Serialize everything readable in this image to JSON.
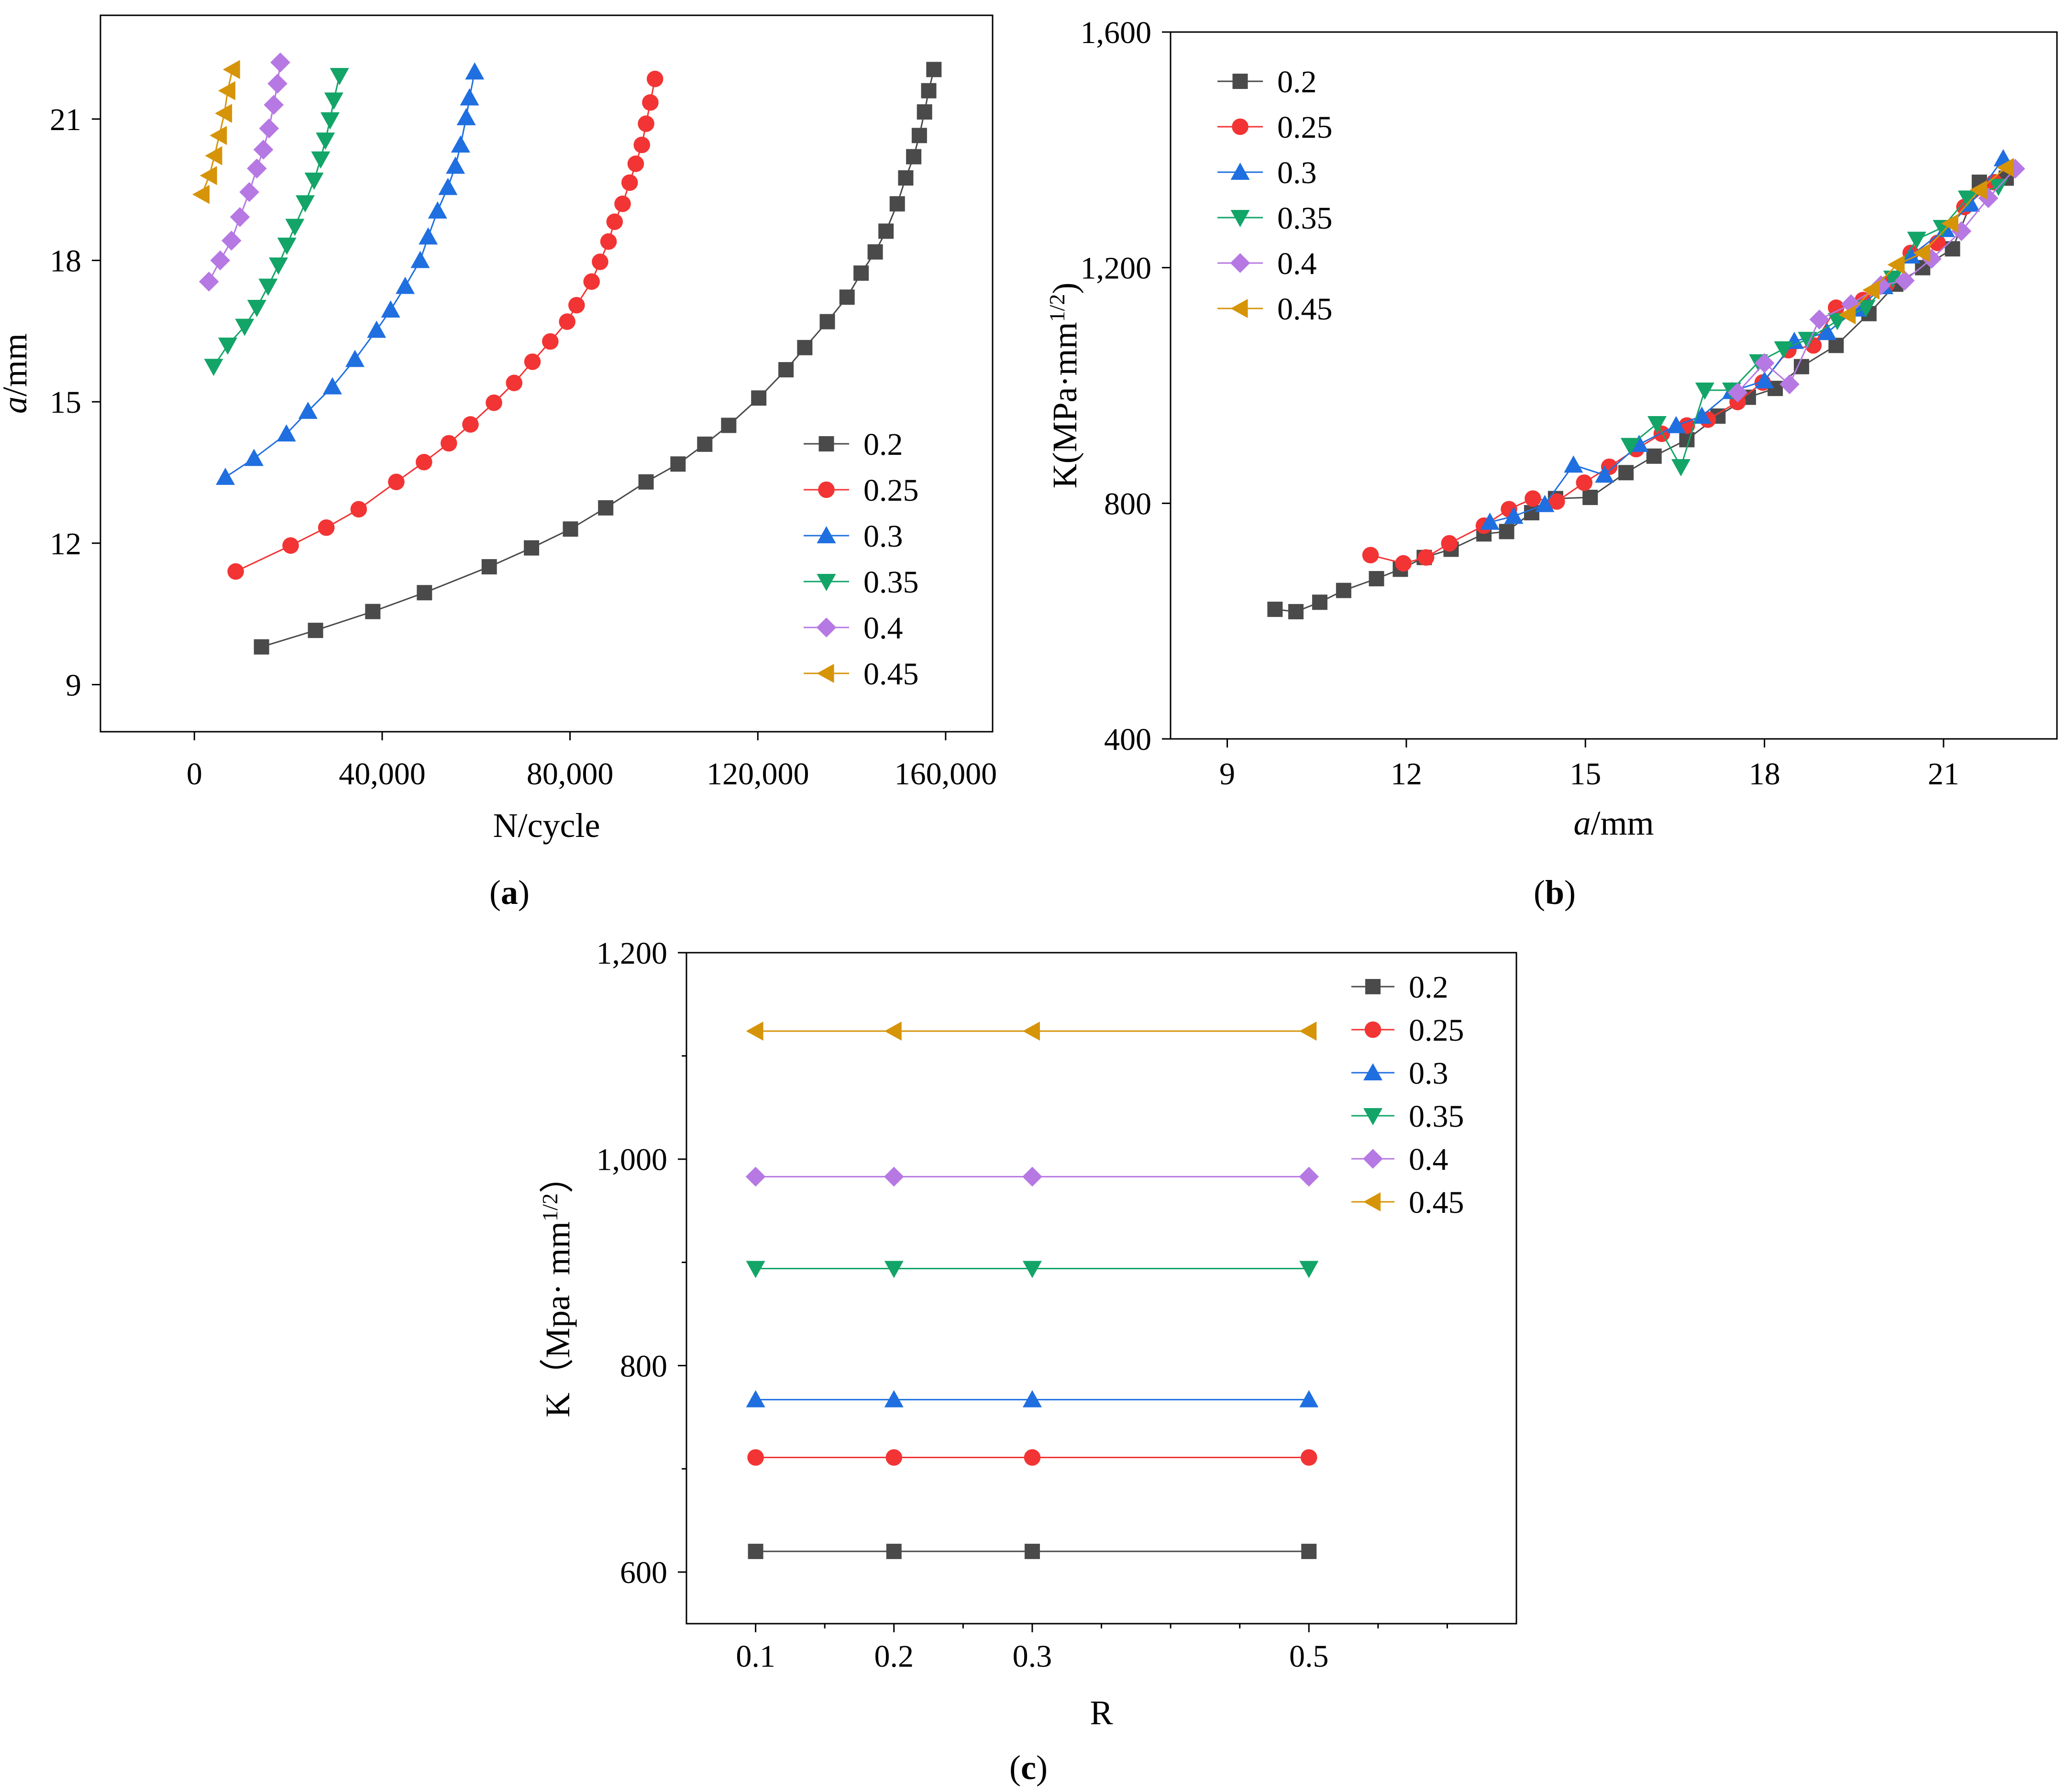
{
  "colors": {
    "0.2": "#4a4a4a",
    "0.25": "#f23434",
    "0.3": "#1f6fe0",
    "0.35": "#13a468",
    "0.4": "#b678e3",
    "0.45": "#d69408"
  },
  "markers": {
    "0.2": "square",
    "0.25": "circle",
    "0.3": "triangle-up",
    "0.35": "triangle-down",
    "0.4": "diamond",
    "0.45": "triangle-left"
  },
  "panel_labels": [
    {
      "open": "(",
      "letter": "a",
      "close": ")"
    },
    {
      "open": "(",
      "letter": "b",
      "close": ")"
    },
    {
      "open": "(",
      "letter": "c",
      "close": ")"
    }
  ],
  "chart_data": [
    {
      "id": "a",
      "type": "scatter",
      "xlabel": "N/cycle",
      "ylabel_italic": "a",
      "ylabel_rest": "/mm",
      "xlim": [
        -20000,
        170000
      ],
      "ylim": [
        8,
        23.2
      ],
      "xticks": [
        0,
        40000,
        80000,
        120000,
        160000
      ],
      "xtick_labels": [
        "0",
        "40,000",
        "80,000",
        "120,000",
        "160,000"
      ],
      "yticks": [
        9,
        12,
        15,
        18,
        21
      ],
      "ytick_labels": [
        "9",
        "12",
        "15",
        "18",
        "21"
      ],
      "legend_position": "bottom-right",
      "series": [
        {
          "name": "0.2",
          "x": [
            14300,
            25800,
            38000,
            49000,
            62800,
            71800,
            80100,
            87600,
            96200,
            103000,
            108700,
            113800,
            120200,
            126000,
            130000,
            134800,
            139000,
            142000,
            145000,
            147300,
            149700,
            151500,
            153200,
            154400,
            155500,
            156400,
            157500
          ],
          "y": [
            9.8,
            10.15,
            10.55,
            10.95,
            11.5,
            11.9,
            12.3,
            12.75,
            13.3,
            13.68,
            14.1,
            14.5,
            15.08,
            15.68,
            16.15,
            16.7,
            17.22,
            17.73,
            18.18,
            18.62,
            19.2,
            19.75,
            20.2,
            20.65,
            21.15,
            21.6,
            22.05
          ]
        },
        {
          "name": "0.25",
          "x": [
            8800,
            20500,
            28100,
            35000,
            43000,
            48900,
            54200,
            58800,
            63800,
            68100,
            72000,
            75800,
            79400,
            81400,
            84600,
            86400,
            88200,
            89500,
            91200,
            92700,
            94000,
            95300,
            96200,
            97100,
            98100
          ],
          "y": [
            11.4,
            11.95,
            12.33,
            12.72,
            13.3,
            13.72,
            14.12,
            14.52,
            14.98,
            15.4,
            15.85,
            16.28,
            16.7,
            17.05,
            17.55,
            17.97,
            18.4,
            18.82,
            19.2,
            19.65,
            20.05,
            20.45,
            20.9,
            21.35,
            21.85
          ]
        },
        {
          "name": "0.3",
          "x": [
            6600,
            12700,
            19600,
            24200,
            29400,
            34200,
            38800,
            41800,
            44900,
            48100,
            49800,
            51800,
            54000,
            55600,
            56700,
            57900,
            58600,
            59700
          ],
          "y": [
            13.4,
            13.8,
            14.32,
            14.8,
            15.32,
            15.9,
            16.52,
            16.95,
            17.45,
            18.0,
            18.5,
            19.05,
            19.55,
            20.0,
            20.45,
            21.03,
            21.45,
            22.0
          ]
        },
        {
          "name": "0.35",
          "x": [
            4100,
            7100,
            10700,
            13300,
            15700,
            17900,
            19700,
            21400,
            23600,
            25500,
            26900,
            27900,
            28900,
            29700,
            30900
          ],
          "y": [
            15.75,
            16.2,
            16.6,
            17.0,
            17.45,
            17.9,
            18.32,
            18.72,
            19.22,
            19.7,
            20.15,
            20.55,
            20.98,
            21.4,
            21.92
          ]
        },
        {
          "name": "0.4",
          "x": [
            3100,
            5500,
            7900,
            9700,
            11700,
            13300,
            14700,
            15900,
            16900,
            17700,
            18300
          ],
          "y": [
            17.55,
            18.0,
            18.42,
            18.92,
            19.45,
            19.95,
            20.35,
            20.8,
            21.3,
            21.75,
            22.2
          ]
        },
        {
          "name": "0.45",
          "x": [
            1600,
            3200,
            4300,
            5300,
            6400,
            7100,
            8100
          ],
          "y": [
            19.4,
            19.8,
            20.22,
            20.65,
            21.12,
            21.6,
            22.05
          ]
        }
      ]
    },
    {
      "id": "b",
      "type": "line",
      "xlabel_italic": "a",
      "xlabel_rest": "/mm",
      "ylabel_main": "K(MPa·mm",
      "ylabel_sup": "1/2",
      "ylabel_close": ")",
      "xlim": [
        8.05,
        22.9
      ],
      "ylim": [
        400,
        1600
      ],
      "xticks": [
        9,
        12,
        15,
        18,
        21
      ],
      "xtick_labels": [
        "9",
        "12",
        "15",
        "18",
        "21"
      ],
      "yticks": [
        400,
        800,
        1200,
        1600
      ],
      "ytick_labels": [
        "400",
        "800",
        "1,200",
        "1,600"
      ],
      "legend_position": "top-left",
      "series": [
        {
          "name": "0.2",
          "x": [
            9.8,
            10.15,
            10.55,
            10.95,
            11.5,
            11.9,
            12.3,
            12.75,
            13.3,
            13.68,
            14.1,
            14.5,
            15.08,
            15.68,
            16.15,
            16.7,
            17.22,
            17.73,
            18.18,
            18.62,
            19.2,
            19.75,
            20.2,
            20.65,
            21.15,
            21.6,
            22.05
          ],
          "y": [
            620,
            616,
            632,
            652,
            672,
            688,
            708,
            722,
            748,
            752,
            784,
            808,
            810,
            852,
            880,
            908,
            948,
            980,
            995,
            1032,
            1068,
            1122,
            1172,
            1200,
            1232,
            1345,
            1352
          ]
        },
        {
          "name": "0.25",
          "x": [
            11.4,
            11.95,
            12.33,
            12.72,
            13.3,
            13.72,
            14.12,
            14.52,
            14.98,
            15.4,
            15.85,
            16.28,
            16.7,
            17.05,
            17.55,
            17.97,
            18.4,
            18.82,
            19.2,
            19.65,
            20.05,
            20.45,
            20.9,
            21.35,
            21.85
          ],
          "y": [
            712,
            698,
            708,
            732,
            762,
            790,
            808,
            803,
            835,
            862,
            892,
            918,
            932,
            942,
            972,
            1005,
            1060,
            1068,
            1132,
            1145,
            1172,
            1225,
            1242,
            1303,
            1345
          ]
        },
        {
          "name": "0.3",
          "x": [
            13.4,
            13.8,
            14.32,
            14.8,
            15.32,
            15.9,
            16.52,
            16.95,
            17.45,
            18.0,
            18.5,
            19.05,
            19.55,
            20.0,
            20.45,
            21.03,
            21.45,
            22.0
          ],
          "y": [
            768,
            778,
            798,
            865,
            848,
            900,
            932,
            948,
            990,
            1008,
            1075,
            1090,
            1130,
            1168,
            1220,
            1265,
            1308,
            1385
          ]
        },
        {
          "name": "0.35",
          "x": [
            15.75,
            16.2,
            16.6,
            17.0,
            17.45,
            17.9,
            18.32,
            18.72,
            19.22,
            19.7,
            20.15,
            20.55,
            20.98,
            21.4,
            21.92
          ],
          "y": [
            898,
            935,
            862,
            992,
            992,
            1040,
            1062,
            1078,
            1110,
            1132,
            1182,
            1248,
            1268,
            1318,
            1338
          ]
        },
        {
          "name": "0.4",
          "x": [
            17.55,
            18.0,
            18.42,
            18.92,
            19.45,
            19.95,
            20.35,
            20.8,
            21.3,
            21.75,
            22.2
          ],
          "y": [
            988,
            1038,
            1002,
            1112,
            1138,
            1170,
            1178,
            1215,
            1262,
            1318,
            1368
          ]
        },
        {
          "name": "0.45",
          "x": [
            19.4,
            19.8,
            20.22,
            20.65,
            21.12,
            21.6,
            22.05
          ],
          "y": [
            1120,
            1162,
            1205,
            1225,
            1275,
            1332,
            1370
          ]
        }
      ]
    },
    {
      "id": "c",
      "type": "line",
      "xlabel": "R",
      "ylabel_main": "K（Mpa· mm",
      "ylabel_sup": "1/2",
      "ylabel_close": "）",
      "xlim": [
        0.05,
        0.65
      ],
      "ylim": [
        550,
        1200
      ],
      "xticks": [
        0.1,
        0.2,
        0.3,
        0.5
      ],
      "xtick_labels": [
        "0.1",
        "0.2",
        "0.3",
        "0.5"
      ],
      "minor_xticks": [
        0.15,
        0.25,
        0.35,
        0.4,
        0.45,
        0.55,
        0.6
      ],
      "yticks": [
        600,
        800,
        1000,
        1200
      ],
      "ytick_labels": [
        "600",
        "800",
        "1,000",
        "1,200"
      ],
      "minor_yticks": [
        700,
        900,
        1100
      ],
      "legend_position": "top-right",
      "series": [
        {
          "name": "0.2",
          "x": [
            0.1,
            0.2,
            0.3,
            0.5
          ],
          "y": [
            620,
            620,
            620,
            620
          ]
        },
        {
          "name": "0.25",
          "x": [
            0.1,
            0.2,
            0.3,
            0.5
          ],
          "y": [
            711,
            711,
            711,
            711
          ]
        },
        {
          "name": "0.3",
          "x": [
            0.1,
            0.2,
            0.3,
            0.5
          ],
          "y": [
            767,
            767,
            767,
            767
          ]
        },
        {
          "name": "0.35",
          "x": [
            0.1,
            0.2,
            0.3,
            0.5
          ],
          "y": [
            894,
            894,
            894,
            894
          ]
        },
        {
          "name": "0.4",
          "x": [
            0.1,
            0.2,
            0.3,
            0.5
          ],
          "y": [
            983,
            983,
            983,
            983
          ]
        },
        {
          "name": "0.45",
          "x": [
            0.1,
            0.2,
            0.3,
            0.5
          ],
          "y": [
            1124,
            1124,
            1124,
            1124
          ]
        }
      ]
    }
  ]
}
